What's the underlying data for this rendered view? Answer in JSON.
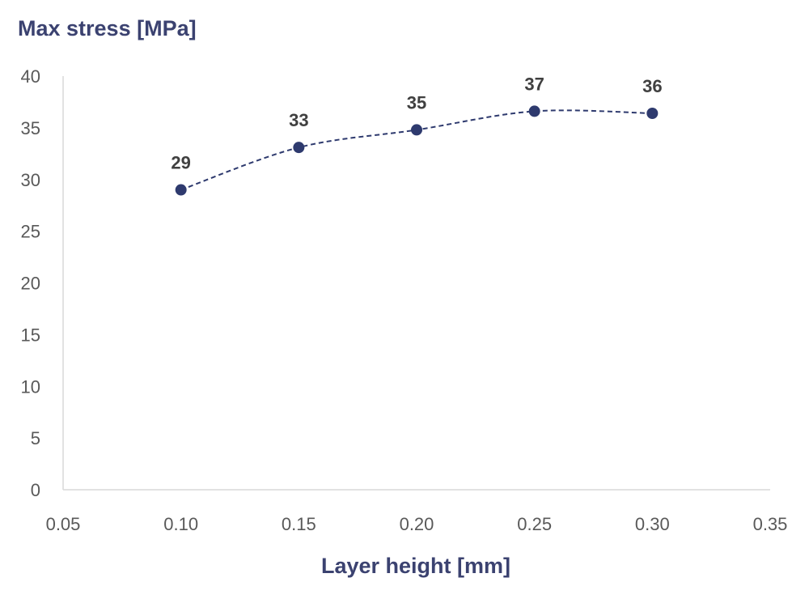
{
  "chart_data": {
    "type": "scatter",
    "xlabel": "Layer height [mm]",
    "ylabel": "Max stress [MPa]",
    "xlim": [
      0.05,
      0.35
    ],
    "ylim": [
      0,
      40
    ],
    "x_ticks": [
      "0.05",
      "0.10",
      "0.15",
      "0.20",
      "0.25",
      "0.30",
      "0.35"
    ],
    "y_ticks": [
      "0",
      "5",
      "10",
      "15",
      "20",
      "25",
      "30",
      "35",
      "40"
    ],
    "grid": false,
    "legend": "none",
    "line_style": "dashed smoothed",
    "series": [
      {
        "x": [
          0.1,
          0.15,
          0.2,
          0.25,
          0.3
        ],
        "y": [
          29.0,
          33.1,
          34.8,
          36.6,
          36.4
        ],
        "labels": [
          "29",
          "33",
          "35",
          "37",
          "36"
        ]
      }
    ]
  },
  "colors": {
    "series": "#2e3a6e",
    "axis_title": "#3b4270",
    "axis_line": "#d9d9d9",
    "tick_text": "#595959",
    "data_label": "#404040"
  }
}
